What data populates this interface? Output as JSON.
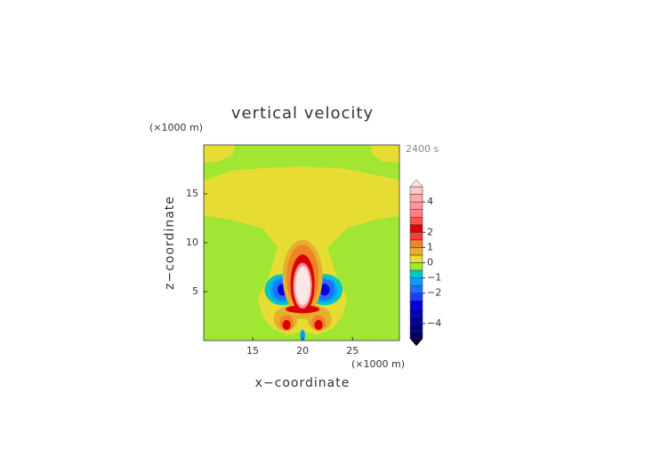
{
  "chart_data": {
    "type": "contour",
    "title": "vertical velocity",
    "time_label": "2400 s",
    "x_label": "x−coordinate",
    "y_label": "z−coordinate",
    "x_unit": "(×1000 m)",
    "y_unit": "(×1000 m)",
    "xlim": [
      10.1,
      29.7
    ],
    "xticks": [
      15,
      20,
      25
    ],
    "ylim": [
      0,
      20
    ],
    "yticks": [
      5,
      10,
      15
    ],
    "colorbar": {
      "levels": [
        -5,
        -4.5,
        -4,
        -3.5,
        -3,
        -2.5,
        -2,
        -1.5,
        -1,
        -0.5,
        0,
        0.5,
        1,
        1.5,
        2,
        2.5,
        3,
        3.5,
        4,
        4.5,
        5
      ],
      "colors": [
        "#000030",
        "#000060",
        "#000080",
        "#0000a0",
        "#0000c0",
        "#0000e0",
        "#1e3cff",
        "#2070ff",
        "#00a0ff",
        "#00c8c8",
        "#a0e632",
        "#e6dc32",
        "#e6af2d",
        "#f08228",
        "#fa3c3c",
        "#dc0000",
        "#ff5050",
        "#ff8080",
        "#ff9696",
        "#ffaaaa",
        "#ffc8c8",
        "#ffe6e6"
      ],
      "ticks": [
        4,
        2,
        1,
        0,
        {
          "value": -1,
          "label": "−1"
        },
        {
          "value": -2,
          "label": "−2"
        },
        {
          "value": -4,
          "label": "−4"
        }
      ]
    }
  }
}
